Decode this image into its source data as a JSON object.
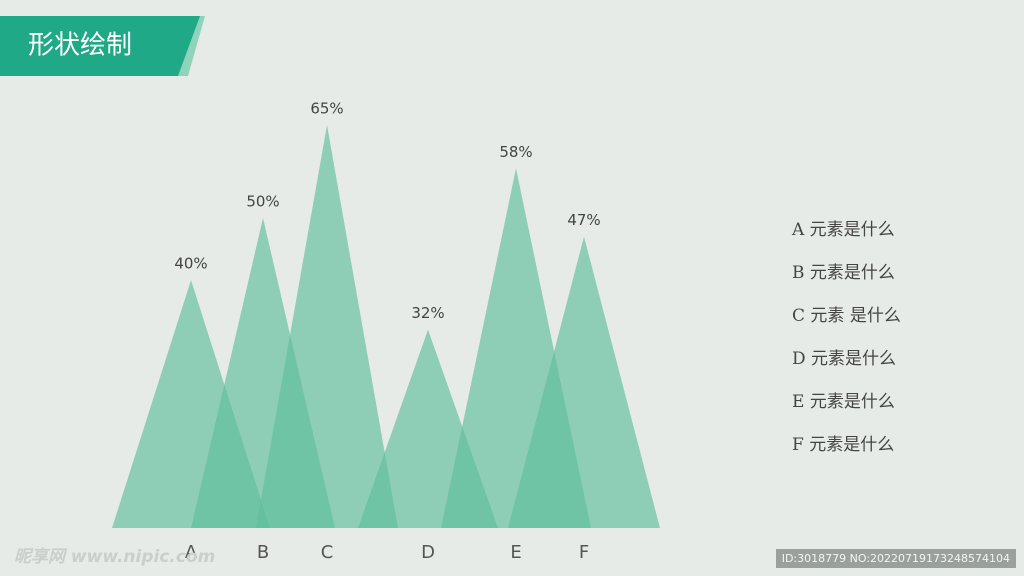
{
  "chart_data": {
    "type": "triangle",
    "title": "形状绘制",
    "categories": [
      "A",
      "B",
      "C",
      "D",
      "E",
      "F"
    ],
    "values": [
      40,
      50,
      65,
      32,
      58,
      47
    ],
    "value_labels": [
      "40%",
      "50%",
      "65%",
      "32%",
      "58%",
      "47%"
    ],
    "color": "#5fbf9c",
    "legend": [
      "A 元素是什么",
      "B 元素是什么",
      "C 元素 是什么",
      "D 元素是什么",
      "E 元素是什么",
      "F 元素是什么"
    ]
  },
  "watermark": {
    "site": "昵享网 www.nipic.com",
    "id": "ID:3018779 NO:20220719173248574104"
  }
}
